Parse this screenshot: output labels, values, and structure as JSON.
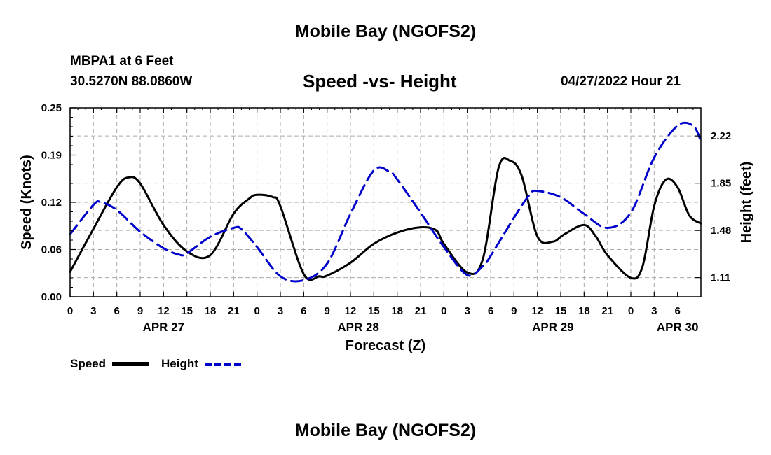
{
  "header": {
    "title": "Mobile Bay (NGOFS2)",
    "station": "MBPA1 at 6 Feet",
    "coordinates": "30.5270N  88.0860W",
    "datetime": "04/27/2022 Hour 21"
  },
  "footer": {
    "title": "Mobile Bay (NGOFS2)"
  },
  "legend": {
    "speed_label": "Speed",
    "height_label": "Height"
  },
  "colors": {
    "speed": "#000000",
    "height": "#0000cc",
    "grid": "#aaaaaa"
  },
  "chart_data": {
    "type": "line",
    "title": "Speed -vs- Height",
    "xlabel": "Forecast (Z)",
    "ylabel": "Speed (Knots)",
    "y2label": "Height (feet)",
    "xlim": [
      0,
      81
    ],
    "ylim": [
      0,
      0.25
    ],
    "y2lim": [
      0.96,
      2.44
    ],
    "x_tick_labels": [
      "0",
      "3",
      "6",
      "9",
      "12",
      "15",
      "18",
      "21",
      "0",
      "3",
      "6",
      "9",
      "12",
      "15",
      "18",
      "21",
      "0",
      "3",
      "6",
      "9",
      "12",
      "15",
      "18",
      "21",
      "0",
      "3",
      "6"
    ],
    "day_labels": [
      {
        "label": "APR 27",
        "x": 12
      },
      {
        "label": "APR 28",
        "x": 37
      },
      {
        "label": "APR 29",
        "x": 62
      },
      {
        "label": "APR 30",
        "x": 78
      }
    ],
    "y_ticks": [
      "0.00",
      "0.06",
      "0.12",
      "0.19",
      "0.25"
    ],
    "y_tick_values": [
      0,
      0.0625,
      0.125,
      0.1875,
      0.25
    ],
    "y2_ticks": [
      "1.11",
      "1.48",
      "1.85",
      "2.22"
    ],
    "y2_tick_values": [
      1.11,
      1.48,
      1.85,
      2.22
    ],
    "series": [
      {
        "name": "Speed",
        "axis": "left",
        "x": [
          0,
          3,
          6,
          7.5,
          9,
          12,
          15,
          18,
          21,
          23,
          24,
          26,
          27,
          30,
          32,
          33,
          36,
          39,
          42,
          45,
          47,
          48,
          51,
          53,
          55,
          56.5,
          58,
          60,
          62,
          63.5,
          66,
          67.5,
          69,
          72,
          73.5,
          75,
          76.5,
          78,
          79.5,
          81
        ],
        "values": [
          0.033,
          0.09,
          0.145,
          0.158,
          0.15,
          0.095,
          0.06,
          0.055,
          0.11,
          0.13,
          0.135,
          0.132,
          0.12,
          0.03,
          0.027,
          0.028,
          0.045,
          0.07,
          0.085,
          0.092,
          0.088,
          0.07,
          0.032,
          0.05,
          0.17,
          0.18,
          0.16,
          0.08,
          0.073,
          0.083,
          0.095,
          0.08,
          0.055,
          0.025,
          0.04,
          0.12,
          0.155,
          0.145,
          0.108,
          0.097
        ]
      },
      {
        "name": "Height",
        "axis": "right",
        "x": [
          0,
          3,
          4,
          6,
          9,
          12,
          14,
          15,
          18,
          21,
          22,
          24,
          27,
          30,
          33,
          36,
          39,
          41,
          42,
          45,
          48,
          51,
          53,
          54,
          57,
          59,
          60,
          63,
          66,
          69,
          72,
          75,
          78,
          80,
          81
        ],
        "values": [
          1.45,
          1.68,
          1.7,
          1.64,
          1.47,
          1.34,
          1.29,
          1.3,
          1.43,
          1.5,
          1.49,
          1.35,
          1.12,
          1.09,
          1.22,
          1.61,
          1.95,
          1.94,
          1.88,
          1.62,
          1.35,
          1.13,
          1.2,
          1.28,
          1.58,
          1.76,
          1.79,
          1.74,
          1.61,
          1.5,
          1.62,
          2.05,
          2.3,
          2.3,
          2.18
        ]
      }
    ]
  }
}
